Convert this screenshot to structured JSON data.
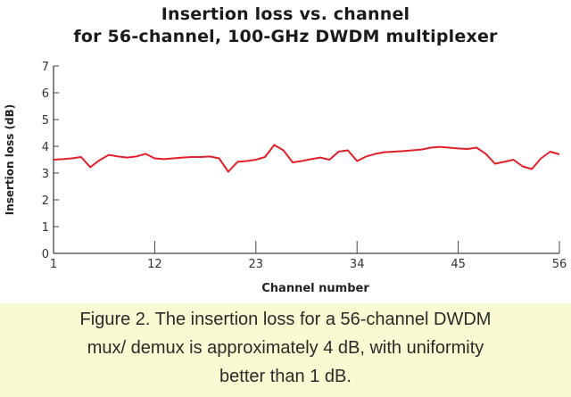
{
  "chart_data": {
    "type": "line",
    "title": "Insertion loss vs. channel",
    "subtitle": "for 56-channel, 100-GHz DWDM multiplexer",
    "xlabel": "Channel number",
    "ylabel": "Insertion loss (dB)",
    "xlim": [
      1,
      56
    ],
    "ylim": [
      0,
      7
    ],
    "xticks": [
      1,
      12,
      23,
      34,
      45,
      56
    ],
    "yticks": [
      0,
      1,
      2,
      3,
      4,
      5,
      6,
      7
    ],
    "grid": false,
    "line_color": "#e0202a",
    "series": [
      {
        "x": [
          1,
          2,
          3,
          4,
          5,
          6,
          7,
          8,
          9,
          10,
          11,
          12,
          13,
          14,
          15,
          16,
          17,
          18,
          19,
          20,
          21,
          22,
          23,
          24,
          25,
          26,
          27,
          28,
          29,
          30,
          31,
          32,
          33,
          34,
          35,
          36,
          37,
          38,
          39,
          40,
          41,
          42,
          43,
          44,
          45,
          46,
          47,
          48,
          49,
          50,
          51,
          52,
          53,
          54,
          55,
          56
        ],
        "values": [
          3.5,
          3.52,
          3.55,
          3.6,
          3.22,
          3.48,
          3.68,
          3.62,
          3.58,
          3.62,
          3.72,
          3.55,
          3.52,
          3.55,
          3.58,
          3.6,
          3.6,
          3.62,
          3.55,
          3.05,
          3.42,
          3.45,
          3.5,
          3.6,
          4.05,
          3.85,
          3.4,
          3.45,
          3.52,
          3.58,
          3.5,
          3.8,
          3.85,
          3.45,
          3.62,
          3.72,
          3.78,
          3.8,
          3.82,
          3.85,
          3.88,
          3.95,
          3.98,
          3.95,
          3.92,
          3.9,
          3.95,
          3.72,
          3.35,
          3.42,
          3.5,
          3.25,
          3.15,
          3.55,
          3.8,
          3.7
        ]
      }
    ]
  },
  "caption": {
    "line1": "Figure 2. The insertion loss for a 56-channel DWDM",
    "line2": "mux/ demux is approximately 4 dB, with uniformity",
    "line3": "better than 1 dB."
  },
  "colors": {
    "caption_background": "#fafad2",
    "axis": "#444444"
  }
}
